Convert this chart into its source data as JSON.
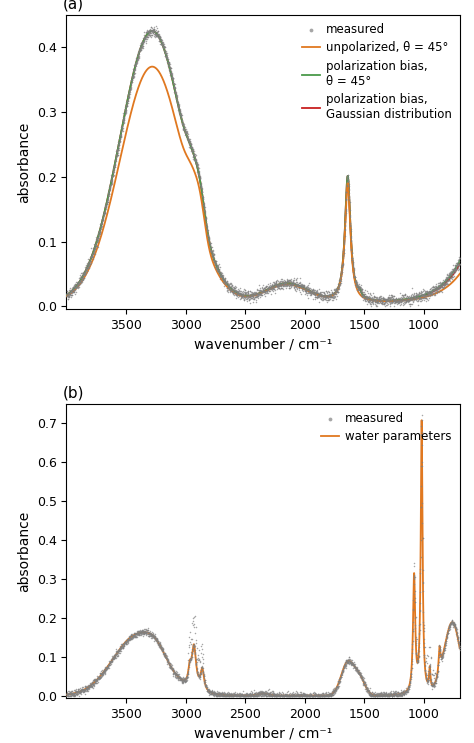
{
  "panel_a": {
    "title_label": "(a)",
    "xlabel": "wavenumber / cm⁻¹",
    "ylabel": "absorbance",
    "xlim": [
      4000,
      700
    ],
    "ylim": [
      -0.005,
      0.45
    ],
    "yticks": [
      0.0,
      0.1,
      0.2,
      0.3,
      0.4
    ],
    "xticks": [
      3500,
      3000,
      2500,
      2000,
      1500,
      1000
    ],
    "legend": [
      "measured",
      "unpolarized, θ = 45°",
      "polarization bias,\nθ = 45°",
      "polarization bias,\nGaussian distribution"
    ],
    "colors": {
      "measured": "#808080",
      "unpolarized": "#e07820",
      "pol_bias_45": "#4a9a4a",
      "pol_bias_gauss": "#c82020"
    }
  },
  "panel_b": {
    "title_label": "(b)",
    "xlabel": "wavenumber / cm⁻¹",
    "ylabel": "absorbance",
    "xlim": [
      4000,
      700
    ],
    "ylim": [
      -0.005,
      0.75
    ],
    "yticks": [
      0.0,
      0.1,
      0.2,
      0.3,
      0.4,
      0.5,
      0.6,
      0.7
    ],
    "xticks": [
      3500,
      3000,
      2500,
      2000,
      1500,
      1000
    ],
    "legend": [
      "measured",
      "water parameters"
    ],
    "colors": {
      "measured": "#808080",
      "water": "#e07820"
    }
  }
}
